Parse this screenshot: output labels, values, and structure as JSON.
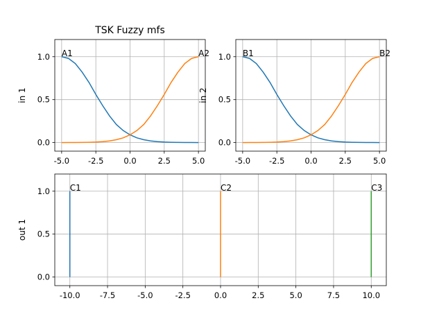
{
  "chart_data": [
    {
      "id": "in1",
      "type": "line",
      "title": "TSK Fuzzy mfs",
      "ylabel": "in 1",
      "xlabel": "",
      "xlim": [
        -5.5,
        5.5
      ],
      "ylim": [
        -0.1,
        1.2
      ],
      "xticks": [
        "-5.0",
        "-2.5",
        "0.0",
        "2.5",
        "5.0"
      ],
      "yticks": [
        "0.0",
        "0.5",
        "1.0"
      ],
      "grid": true,
      "series": [
        {
          "name": "A1",
          "color": "#1f77b4",
          "x": [
            -5,
            -4.5,
            -4,
            -3.5,
            -3,
            -2.5,
            -2,
            -1.5,
            -1,
            -0.5,
            0,
            0.5,
            1,
            1.5,
            2,
            2.5,
            3,
            3.5,
            4,
            4.5,
            5
          ],
          "values": [
            1.0,
            0.98,
            0.92,
            0.82,
            0.7,
            0.56,
            0.43,
            0.31,
            0.21,
            0.14,
            0.09,
            0.055,
            0.033,
            0.019,
            0.011,
            0.006,
            0.003,
            0.0015,
            0.001,
            0.0005,
            0.0
          ]
        },
        {
          "name": "A2",
          "color": "#ff7f0e",
          "x": [
            -5,
            -4.5,
            -4,
            -3.5,
            -3,
            -2.5,
            -2,
            -1.5,
            -1,
            -0.5,
            0,
            0.5,
            1,
            1.5,
            2,
            2.5,
            3,
            3.5,
            4,
            4.5,
            5
          ],
          "values": [
            0.0,
            0.0005,
            0.001,
            0.0015,
            0.003,
            0.006,
            0.011,
            0.019,
            0.033,
            0.055,
            0.09,
            0.14,
            0.21,
            0.31,
            0.43,
            0.56,
            0.7,
            0.82,
            0.92,
            0.98,
            1.0
          ]
        }
      ],
      "annotations": [
        {
          "text": "A1",
          "x": -5,
          "y": 1.0
        },
        {
          "text": "A2",
          "x": 5,
          "y": 1.0
        }
      ]
    },
    {
      "id": "in2",
      "type": "line",
      "title": "",
      "ylabel": "in 2",
      "xlabel": "",
      "xlim": [
        -5.5,
        5.5
      ],
      "ylim": [
        -0.1,
        1.2
      ],
      "xticks": [
        "-5.0",
        "-2.5",
        "0.0",
        "2.5",
        "5.0"
      ],
      "yticks": [
        "0.0",
        "0.5",
        "1.0"
      ],
      "grid": true,
      "series": [
        {
          "name": "B1",
          "color": "#1f77b4",
          "x": [
            -5,
            -4.5,
            -4,
            -3.5,
            -3,
            -2.5,
            -2,
            -1.5,
            -1,
            -0.5,
            0,
            0.5,
            1,
            1.5,
            2,
            2.5,
            3,
            3.5,
            4,
            4.5,
            5
          ],
          "values": [
            1.0,
            0.98,
            0.92,
            0.82,
            0.7,
            0.56,
            0.43,
            0.31,
            0.21,
            0.14,
            0.09,
            0.055,
            0.033,
            0.019,
            0.011,
            0.006,
            0.003,
            0.0015,
            0.001,
            0.0005,
            0.0
          ]
        },
        {
          "name": "B2",
          "color": "#ff7f0e",
          "x": [
            -5,
            -4.5,
            -4,
            -3.5,
            -3,
            -2.5,
            -2,
            -1.5,
            -1,
            -0.5,
            0,
            0.5,
            1,
            1.5,
            2,
            2.5,
            3,
            3.5,
            4,
            4.5,
            5
          ],
          "values": [
            0.0,
            0.0005,
            0.001,
            0.0015,
            0.003,
            0.006,
            0.011,
            0.019,
            0.033,
            0.055,
            0.09,
            0.14,
            0.21,
            0.31,
            0.43,
            0.56,
            0.7,
            0.82,
            0.92,
            0.98,
            1.0
          ]
        }
      ],
      "annotations": [
        {
          "text": "B1",
          "x": -5,
          "y": 1.0
        },
        {
          "text": "B2",
          "x": 5,
          "y": 1.0
        }
      ]
    },
    {
      "id": "out1",
      "type": "line",
      "title": "",
      "ylabel": "out 1",
      "xlabel": "",
      "xlim": [
        -11,
        11
      ],
      "ylim": [
        -0.1,
        1.2
      ],
      "xticks": [
        "-10.0",
        "-7.5",
        "-5.0",
        "-2.5",
        "0.0",
        "2.5",
        "5.0",
        "7.5",
        "10.0"
      ],
      "yticks": [
        "0.0",
        "0.5",
        "1.0"
      ],
      "grid": true,
      "series": [
        {
          "name": "C1",
          "color": "#1f77b4",
          "x": [
            -10,
            -10
          ],
          "values": [
            0,
            1
          ]
        },
        {
          "name": "C2",
          "color": "#ff7f0e",
          "x": [
            0,
            0
          ],
          "values": [
            0,
            1
          ]
        },
        {
          "name": "C3",
          "color": "#2ca02c",
          "x": [
            10,
            10
          ],
          "values": [
            0,
            1
          ]
        }
      ],
      "annotations": [
        {
          "text": "C1",
          "x": -10,
          "y": 1.0
        },
        {
          "text": "C2",
          "x": 0,
          "y": 1.0
        },
        {
          "text": "C3",
          "x": 10,
          "y": 1.0
        }
      ]
    }
  ]
}
